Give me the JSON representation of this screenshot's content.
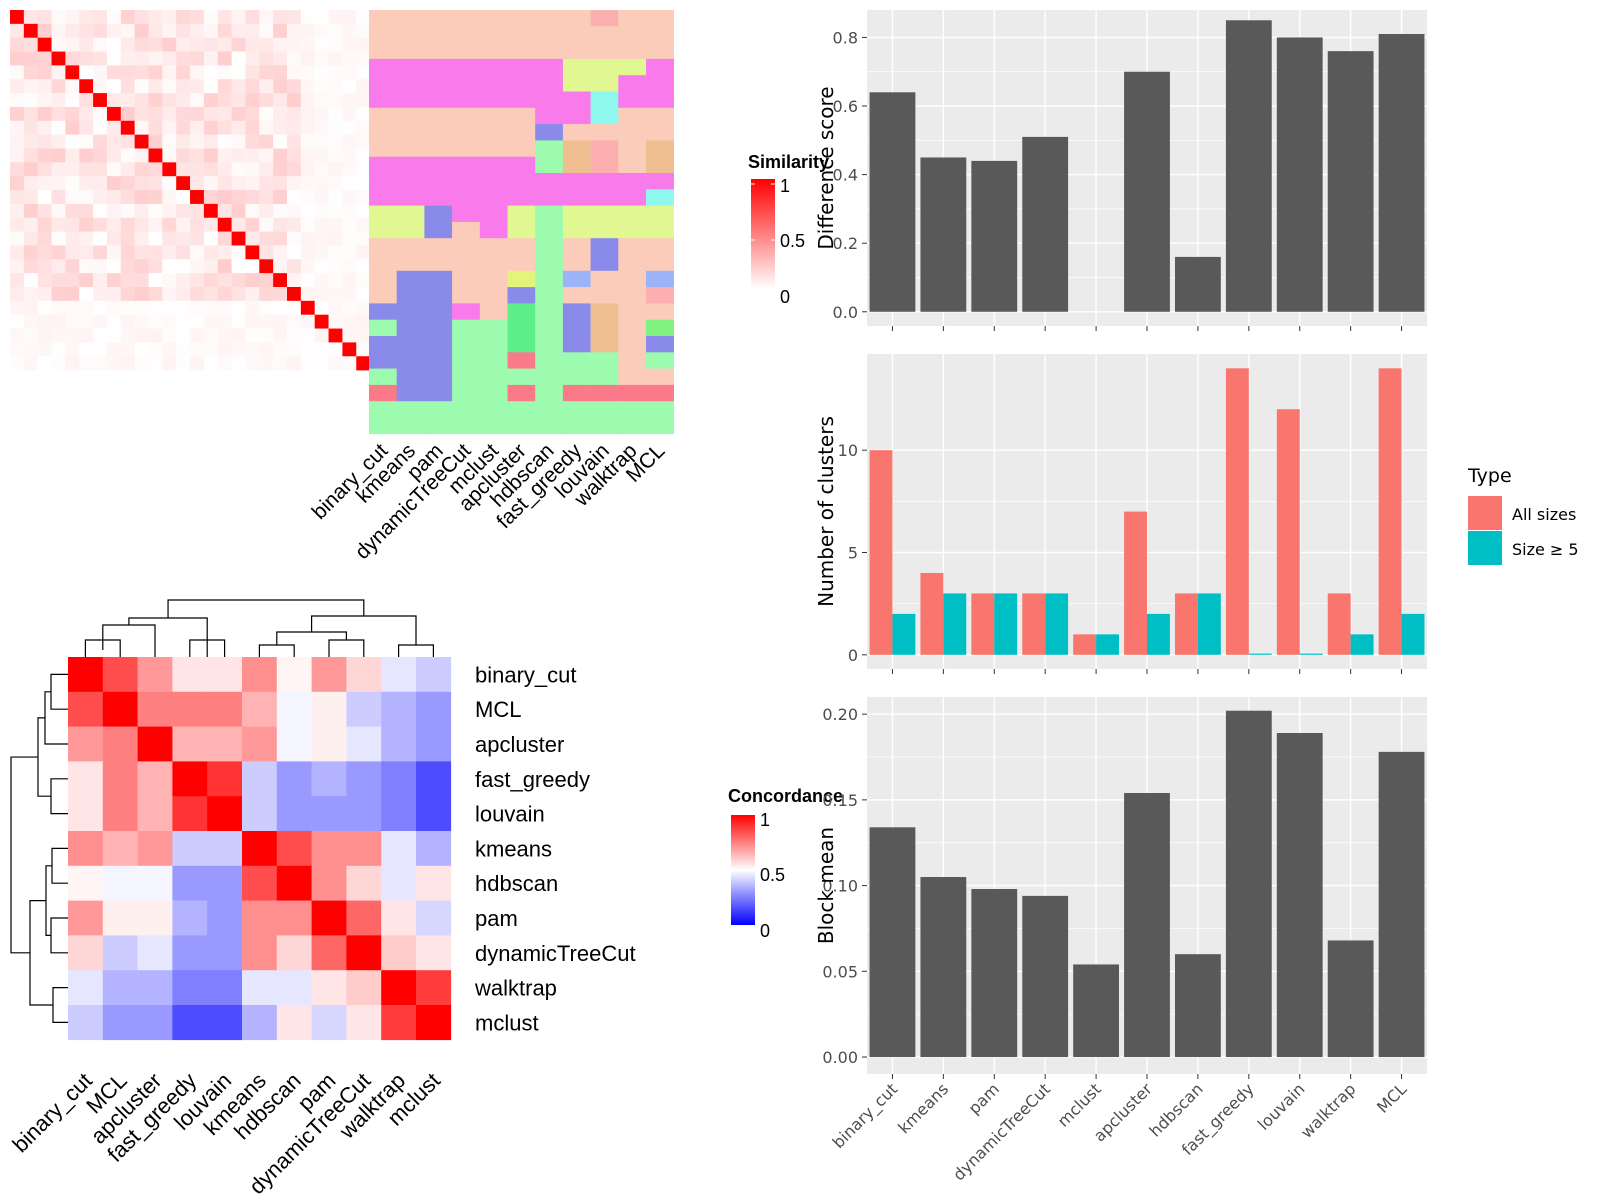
{
  "methods_plot_order": [
    "binary_cut",
    "kmeans",
    "pam",
    "dynamicTreeCut",
    "mclust",
    "apcluster",
    "hdbscan",
    "fast_greedy",
    "louvain",
    "walktrap",
    "MCL"
  ],
  "similarity_legend": {
    "title": "Similarity",
    "ticks": [
      "1",
      "0.5",
      "0"
    ]
  },
  "concordance_legend": {
    "title": "Concordance",
    "ticks": [
      "1",
      "0.5",
      "0"
    ]
  },
  "type_legend": {
    "title": "Type",
    "items": [
      "All sizes",
      "Size ≥ 5"
    ],
    "colors": [
      "#F8766D",
      "#00BFC4"
    ]
  },
  "chart_data": [
    {
      "type": "heatmap",
      "panel": "term-similarity-matrix",
      "size": 26,
      "note_values": "diagonal = 1, off-diagonal mostly below 0.2",
      "colorscale": [
        "#ffffff",
        "#ff0000"
      ]
    },
    {
      "type": "heatmap",
      "panel": "cluster-assignment",
      "columns": [
        "binary_cut",
        "kmeans",
        "pam",
        "dynamicTreeCut",
        "mclust",
        "apcluster",
        "hdbscan",
        "fast_greedy",
        "louvain",
        "walktrap",
        "MCL"
      ]
    },
    {
      "type": "heatmap",
      "panel": "concordance",
      "rows": [
        "binary_cut",
        "MCL",
        "apcluster",
        "fast_greedy",
        "louvain",
        "kmeans",
        "hdbscan",
        "pam",
        "dynamicTreeCut",
        "walktrap",
        "mclust"
      ],
      "columns": [
        "binary_cut",
        "MCL",
        "apcluster",
        "fast_greedy",
        "louvain",
        "kmeans",
        "hdbscan",
        "pam",
        "dynamicTreeCut",
        "walktrap",
        "mclust"
      ],
      "values": [
        [
          1.0,
          0.85,
          0.7,
          0.55,
          0.55,
          0.72,
          0.52,
          0.7,
          0.58,
          0.45,
          0.4
        ],
        [
          0.85,
          1.0,
          0.75,
          0.75,
          0.75,
          0.65,
          0.48,
          0.53,
          0.4,
          0.35,
          0.3
        ],
        [
          0.7,
          0.75,
          1.0,
          0.65,
          0.65,
          0.7,
          0.48,
          0.53,
          0.45,
          0.35,
          0.3
        ],
        [
          0.55,
          0.75,
          0.65,
          1.0,
          0.9,
          0.4,
          0.3,
          0.35,
          0.3,
          0.25,
          0.15
        ],
        [
          0.55,
          0.75,
          0.65,
          0.9,
          1.0,
          0.4,
          0.3,
          0.3,
          0.3,
          0.25,
          0.15
        ],
        [
          0.72,
          0.65,
          0.7,
          0.4,
          0.4,
          1.0,
          0.85,
          0.72,
          0.72,
          0.45,
          0.35
        ],
        [
          0.52,
          0.48,
          0.48,
          0.3,
          0.3,
          0.85,
          1.0,
          0.72,
          0.58,
          0.45,
          0.55
        ],
        [
          0.7,
          0.53,
          0.53,
          0.35,
          0.3,
          0.72,
          0.72,
          1.0,
          0.8,
          0.55,
          0.42
        ],
        [
          0.58,
          0.4,
          0.45,
          0.3,
          0.3,
          0.72,
          0.58,
          0.8,
          1.0,
          0.6,
          0.55
        ],
        [
          0.45,
          0.35,
          0.35,
          0.25,
          0.25,
          0.45,
          0.45,
          0.55,
          0.6,
          1.0,
          0.88
        ],
        [
          0.4,
          0.3,
          0.3,
          0.15,
          0.15,
          0.35,
          0.55,
          0.42,
          0.55,
          0.88,
          1.0
        ]
      ],
      "range": [
        0,
        1
      ]
    },
    {
      "type": "bar",
      "ylabel": "Difference score",
      "categories": [
        "binary_cut",
        "kmeans",
        "pam",
        "dynamicTreeCut",
        "mclust",
        "apcluster",
        "hdbscan",
        "fast_greedy",
        "louvain",
        "walktrap",
        "MCL"
      ],
      "values": [
        0.64,
        0.45,
        0.44,
        0.51,
        null,
        0.7,
        0.16,
        0.85,
        0.8,
        0.76,
        0.81
      ],
      "ylim": [
        0,
        0.88
      ],
      "yticks": [
        "0.0",
        "0.2",
        "0.4",
        "0.6",
        "0.8"
      ],
      "color": "#595959"
    },
    {
      "type": "bar",
      "ylabel": "Number of clusters",
      "categories": [
        "binary_cut",
        "kmeans",
        "pam",
        "dynamicTreeCut",
        "mclust",
        "apcluster",
        "hdbscan",
        "fast_greedy",
        "louvain",
        "walktrap",
        "MCL"
      ],
      "series": [
        {
          "name": "All sizes",
          "values": [
            10,
            4,
            3,
            3,
            1,
            7,
            3,
            14,
            12,
            3,
            14
          ]
        },
        {
          "name": "Size ≥ 5",
          "values": [
            2,
            3,
            3,
            3,
            1,
            2,
            3,
            0,
            0,
            1,
            2
          ]
        }
      ],
      "ylim": [
        0,
        14.7
      ],
      "yticks": [
        "0",
        "5",
        "10"
      ]
    },
    {
      "type": "bar",
      "ylabel": "Block mean",
      "categories": [
        "binary_cut",
        "kmeans",
        "pam",
        "dynamicTreeCut",
        "mclust",
        "apcluster",
        "hdbscan",
        "fast_greedy",
        "louvain",
        "walktrap",
        "MCL"
      ],
      "values": [
        0.134,
        0.105,
        0.098,
        0.094,
        0.054,
        0.154,
        0.06,
        0.202,
        0.189,
        0.068,
        0.178
      ],
      "ylim": [
        0,
        0.21
      ],
      "yticks": [
        "0.00",
        "0.05",
        "0.10",
        "0.15",
        "0.20"
      ],
      "color": "#595959"
    }
  ]
}
